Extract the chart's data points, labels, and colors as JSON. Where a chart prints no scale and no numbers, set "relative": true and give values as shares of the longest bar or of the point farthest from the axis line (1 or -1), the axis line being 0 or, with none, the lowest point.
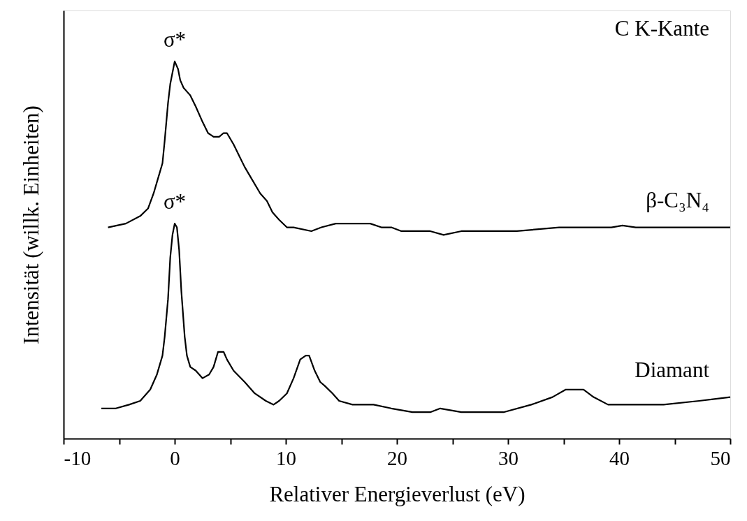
{
  "chart_data": {
    "type": "line",
    "relative": true,
    "xlabel": "Relativer Energieverlust (eV)",
    "ylabel": "Intensität (willk. Einheiten)",
    "xlim": [
      -10,
      50
    ],
    "xticks": [
      -10,
      {
        "value": -5,
        "label": null
      },
      0,
      {
        "value": 5,
        "label": null
      },
      10,
      {
        "value": 15,
        "label": null
      },
      20,
      {
        "value": 25,
        "label": null
      },
      30,
      {
        "value": 35,
        "label": null
      },
      40,
      {
        "value": 45,
        "label": null
      },
      50
    ],
    "grid": false,
    "legend": false,
    "marker": "none",
    "line_style": "solid",
    "annotations": [
      {
        "text": "σ*",
        "x": 0.0,
        "y": 1.0
      },
      {
        "text": "σ*",
        "x": 0.0,
        "y": 0.57
      },
      "C K-Kante"
    ],
    "series": [
      {
        "name": "β-C₃N₄",
        "color": "#000000",
        "x": [
          -6.0,
          -4.4,
          -3.1,
          -2.4,
          -1.9,
          -1.5,
          -1.1,
          -0.9,
          -0.6,
          -0.4,
          0.0,
          0.3,
          0.5,
          0.8,
          1.1,
          1.4,
          1.9,
          2.5,
          3.0,
          3.5,
          4.0,
          4.4,
          4.7,
          5.3,
          5.8,
          6.3,
          6.9,
          7.7,
          8.3,
          8.8,
          9.4,
          10.1,
          10.7,
          12.3,
          13.2,
          14.5,
          16.4,
          17.6,
          18.6,
          19.5,
          20.4,
          22.0,
          23.0,
          24.2,
          25.8,
          27.7,
          30.8,
          34.6,
          37.1,
          39.3,
          40.3,
          41.5,
          43.4,
          47.2,
          50.0
        ],
        "values": [
          0.56,
          0.57,
          0.59,
          0.61,
          0.65,
          0.69,
          0.73,
          0.79,
          0.89,
          0.94,
          1.0,
          0.98,
          0.95,
          0.93,
          0.92,
          0.91,
          0.88,
          0.84,
          0.81,
          0.8,
          0.8,
          0.81,
          0.81,
          0.78,
          0.75,
          0.72,
          0.69,
          0.65,
          0.63,
          0.6,
          0.58,
          0.56,
          0.56,
          0.55,
          0.56,
          0.57,
          0.57,
          0.57,
          0.56,
          0.56,
          0.55,
          0.55,
          0.55,
          0.54,
          0.55,
          0.55,
          0.55,
          0.56,
          0.56,
          0.56,
          0.565,
          0.56,
          0.56,
          0.56,
          0.56
        ]
      },
      {
        "name": "Diamant",
        "color": "#000000",
        "x": [
          -6.6,
          -5.3,
          -4.1,
          -3.1,
          -2.2,
          -1.6,
          -1.1,
          -0.9,
          -0.6,
          -0.4,
          -0.2,
          0.0,
          0.2,
          0.4,
          0.6,
          0.9,
          1.1,
          1.4,
          1.9,
          2.5,
          3.1,
          3.5,
          3.9,
          4.4,
          4.7,
          5.3,
          6.3,
          7.2,
          8.2,
          8.9,
          9.4,
          10.1,
          10.7,
          11.3,
          11.8,
          12.1,
          12.6,
          13.1,
          13.5,
          14.2,
          14.8,
          16.0,
          17.9,
          19.5,
          21.4,
          23.0,
          23.9,
          25.8,
          27.7,
          29.6,
          32.1,
          34.0,
          35.2,
          36.2,
          36.8,
          37.7,
          39.0,
          40.9,
          44.0,
          47.2,
          50.0
        ],
        "values": [
          0.08,
          0.08,
          0.09,
          0.1,
          0.13,
          0.17,
          0.22,
          0.27,
          0.37,
          0.48,
          0.54,
          0.57,
          0.56,
          0.5,
          0.39,
          0.27,
          0.22,
          0.19,
          0.18,
          0.16,
          0.17,
          0.19,
          0.23,
          0.23,
          0.21,
          0.18,
          0.15,
          0.12,
          0.1,
          0.09,
          0.1,
          0.12,
          0.16,
          0.21,
          0.22,
          0.22,
          0.18,
          0.15,
          0.14,
          0.12,
          0.1,
          0.09,
          0.09,
          0.08,
          0.07,
          0.07,
          0.08,
          0.07,
          0.07,
          0.07,
          0.09,
          0.11,
          0.13,
          0.13,
          0.13,
          0.11,
          0.09,
          0.09,
          0.09,
          0.1,
          0.11
        ]
      }
    ]
  }
}
